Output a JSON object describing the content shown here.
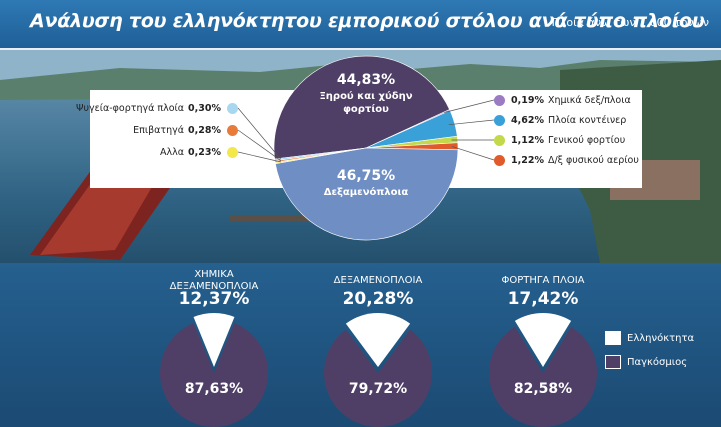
{
  "header": {
    "title": "Ανάλυση του ελληνόκτητου εμπορικού στόλου ανά τύπο πλοίου",
    "subtitle": "Πλοία άνω των 1.000 τόνων"
  },
  "colors": {
    "dark": "#4f3f66",
    "blue": "#6f8fc4",
    "light": "#ffffff",
    "header": "#2a6fab",
    "purple": "#9b7bc2",
    "cyan": "#3aa0d8",
    "green": "#c3d84a",
    "red": "#e05a2c",
    "lightblue": "#a8d8f0",
    "orange": "#e87a3a",
    "yellow": "#f2e84a"
  },
  "chart_data": [
    {
      "type": "pie",
      "title": "",
      "slices": [
        {
          "label": "Ξηρού και χύδην φορτίου",
          "value": 44.83,
          "value_label": "44,83%",
          "color": "#4f3f66"
        },
        {
          "label": "Χημικά δεξ/πλοια",
          "value": 0.19,
          "value_label": "0,19%",
          "color": "#9b7bc2"
        },
        {
          "label": "Πλοία κοντέινερ",
          "value": 4.62,
          "value_label": "4,62%",
          "color": "#3aa0d8"
        },
        {
          "label": "Γενικού φορτίου",
          "value": 1.12,
          "value_label": "1,12%",
          "color": "#c3d84a"
        },
        {
          "label": "Δ/ξ φυσικού αερίου",
          "value": 1.22,
          "value_label": "1,22%",
          "color": "#e05a2c"
        },
        {
          "label": "Δεξαμενόπλοια",
          "value": 46.75,
          "value_label": "46,75%",
          "color": "#6f8fc4"
        },
        {
          "label": "Αλλα",
          "value": 0.23,
          "value_label": "0,23%",
          "color": "#f2e84a"
        },
        {
          "label": "Επιβατηγά",
          "value": 0.28,
          "value_label": "0,28%",
          "color": "#e87a3a"
        },
        {
          "label": "Ψυγεία-φορτηγά πλοία",
          "value": 0.3,
          "value_label": "0,30%",
          "color": "#a8d8f0"
        }
      ],
      "big_labels": {
        "top_value": "44,83%",
        "top_line1": "Ξηρού και χύδην",
        "top_line2": "φορτίου",
        "bottom_value": "46,75%",
        "bottom_line1": "Δεξαμενόπλοια"
      },
      "left_legend": [
        {
          "label": "Ψυγεία-φορτηγά πλοία",
          "value_label": "0,30%",
          "color": "#a8d8f0"
        },
        {
          "label": "Επιβατηγά",
          "value_label": "0,28%",
          "color": "#e87a3a"
        },
        {
          "label": "Αλλα",
          "value_label": "0,23%",
          "color": "#f2e84a"
        }
      ],
      "right_legend": [
        {
          "label": "Χημικά δεξ/πλοια",
          "value_label": "0,19%",
          "color": "#9b7bc2"
        },
        {
          "label": "Πλοία κοντέινερ",
          "value_label": "4,62%",
          "color": "#3aa0d8"
        },
        {
          "label": "Γενικού φορτίου",
          "value_label": "1,12%",
          "color": "#c3d84a"
        },
        {
          "label": "Δ/ξ φυσικού αερίου",
          "value_label": "1,22%",
          "color": "#e05a2c"
        }
      ]
    },
    {
      "type": "pie",
      "title_line1": "ΧΗΜΙΚΑ",
      "title_line2": "ΔΕΞΑΜΕΝΟΠΛΟΙΑ",
      "slices": [
        {
          "label": "Ελληνόκτητα",
          "value": 12.37,
          "value_label": "12,37%"
        },
        {
          "label": "Παγκόσμιος",
          "value": 87.63,
          "value_label": "87,63%"
        }
      ]
    },
    {
      "type": "pie",
      "title_line1": "ΔΕΞΑΜΕΝΟΠΛΟΙΑ",
      "title_line2": "",
      "slices": [
        {
          "label": "Ελληνόκτητα",
          "value": 20.28,
          "value_label": "20,28%"
        },
        {
          "label": "Παγκόσμιος",
          "value": 79.72,
          "value_label": "79,72%"
        }
      ]
    },
    {
      "type": "pie",
      "title_line1": "ΦΟΡΤΗΓΑ ΠΛΟΙΑ",
      "title_line2": "",
      "slices": [
        {
          "label": "Ελληνόκτητα",
          "value": 17.42,
          "value_label": "17,42%"
        },
        {
          "label": "Παγκόσμιος",
          "value": 82.58,
          "value_label": "82,58%"
        }
      ]
    }
  ],
  "legend": {
    "items": [
      {
        "label": "Ελληνόκτητα",
        "color": "#ffffff"
      },
      {
        "label": "Παγκόσμιος",
        "color": "#4f3f66"
      }
    ]
  }
}
